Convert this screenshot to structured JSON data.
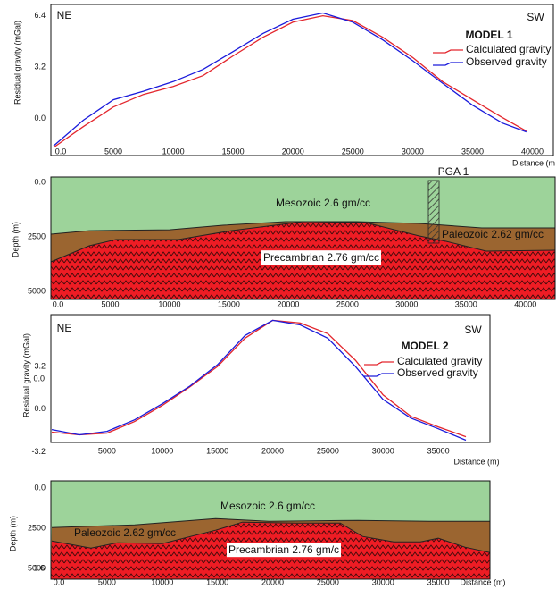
{
  "chart_data": [
    {
      "type": "line",
      "title": "MODEL 1",
      "annotations": [
        "NE",
        "SW"
      ],
      "ylabel": "Residual gravity (mGal)",
      "xlabel": "Distance (m",
      "x": [
        0,
        2500,
        5000,
        7500,
        10000,
        12500,
        15000,
        17500,
        20000,
        22500,
        25000,
        27500,
        30000,
        32500,
        35000,
        37500,
        39500
      ],
      "series": [
        {
          "name": "Calculated gravity",
          "color": "#e3262d",
          "values": [
            -1.8,
            -0.5,
            0.72,
            1.5,
            2.0,
            2.67,
            3.9,
            5.06,
            6.0,
            6.4,
            6.1,
            5.06,
            3.8,
            2.3,
            1.17,
            0.06,
            -0.78
          ]
        },
        {
          "name": "Observed gravity",
          "color": "#1a1adb",
          "values": [
            -1.7,
            -0.1,
            1.17,
            1.7,
            2.3,
            3.06,
            4.17,
            5.3,
            6.18,
            6.57,
            6.0,
            4.9,
            3.6,
            2.2,
            0.83,
            -0.28,
            -0.83
          ]
        }
      ],
      "xlim": [
        -220,
        41750
      ],
      "ylim": [
        -2.3,
        7.1
      ],
      "xticks": [
        {
          "value": 0,
          "label": "0.0"
        },
        5000,
        10000,
        15000,
        20000,
        25000,
        30000,
        35000,
        40000
      ],
      "yticks": [
        6.4,
        3.2,
        {
          "value": 0,
          "label": "0.0"
        }
      ]
    },
    {
      "type": "section",
      "ylabel": "Depth (m)",
      "well": "PGA 1",
      "series": [
        {
          "name": "Mesozoic 2.6 gm/cc",
          "color": "#9dd39a"
        },
        {
          "name": "Paleozoic 2.62 gm/cc",
          "color": "#9b6530",
          "x": [
            0,
            3233,
            10000,
            14511,
            19774,
            25789,
            31053,
            36316,
            42500
          ],
          "values": [
            2377,
            2214,
            2173,
            1967,
            1803,
            1803,
            1885,
            2090,
            2090
          ]
        },
        {
          "name": "Precambrian 2.76 gm/cc",
          "color": "#ee1c24",
          "x": [
            0,
            3233,
            5489,
            10752,
            15263,
            21278,
            26541,
            31053,
            33308,
            36692,
            42500
          ],
          "values": [
            3648,
            2910,
            2623,
            2623,
            2213,
            1803,
            1844,
            2459,
            2705,
            3156,
            3115
          ]
        }
      ],
      "xlim": [
        0,
        42500
      ],
      "ylim": [
        -250,
        5370
      ],
      "xticks": [
        {
          "value": 0,
          "label": "0.0"
        },
        5000,
        10000,
        15000,
        20000,
        25000,
        30000,
        35000,
        40000
      ],
      "yticks": [
        {
          "value": 0,
          "label": "0.0"
        },
        2500,
        5000
      ]
    },
    {
      "type": "line",
      "title": "MODEL 2",
      "annotations": [
        "NE",
        "SW"
      ],
      "ylabel": "Residual gravity (mGal)",
      "xlabel": "Distance (m)",
      "extra_labels": [
        "0.0"
      ],
      "x": [
        0,
        2500,
        5000,
        7500,
        10000,
        12500,
        15000,
        17500,
        20000,
        22500,
        25000,
        27500,
        30000,
        32500,
        35000,
        37500
      ],
      "series": [
        {
          "name": "Calculated gravity",
          "color": "#e3262d",
          "values": [
            -1.73,
            -1.93,
            -1.8,
            -0.93,
            0.27,
            1.67,
            3.2,
            5.33,
            6.67,
            6.47,
            5.67,
            3.67,
            1.07,
            -0.53,
            -1.33,
            -2.07
          ]
        },
        {
          "name": "Observed gravity",
          "color": "#1a1adb",
          "values": [
            -1.53,
            -1.93,
            -1.67,
            -0.8,
            0.4,
            1.73,
            3.33,
            5.53,
            6.67,
            6.33,
            5.33,
            3.2,
            0.73,
            -0.67,
            -1.47,
            -2.33
          ]
        }
      ],
      "xlim": [
        -80,
        39680
      ],
      "ylim": [
        -2.5,
        7.1
      ],
      "xticks": [
        5000,
        10000,
        15000,
        20000,
        25000,
        30000,
        35000
      ],
      "yticks": [
        3.2,
        {
          "value": 0,
          "label": "0.0"
        },
        -3.2
      ]
    },
    {
      "type": "section",
      "ylabel": "Depth (m)",
      "xlabel": "Distance (m)",
      "extra_labels": [
        "-1.6"
      ],
      "series": [
        {
          "name": "Mesozoic 2.6 gm/cc",
          "color": "#9dd39a"
        },
        {
          "name": "Paleozoic 2.62 gm/cc",
          "color": "#9b6530",
          "x": [
            0,
            7500,
            14839,
            19677,
            27742,
            34194,
            39680
          ],
          "values": [
            2444,
            2278,
            1889,
            2056,
            2000,
            2056,
            2056
          ]
        },
        {
          "name": "Precambrian 2.76 gm/c",
          "color": "#ee1c24",
          "x": [
            0,
            3548,
            5968,
            10000,
            14839,
            17258,
            22097,
            26129,
            28145,
            30968,
            33387,
            35000,
            37419,
            39680
          ],
          "values": [
            3278,
            3722,
            3389,
            3444,
            2611,
            2111,
            2167,
            2167,
            3000,
            3333,
            3333,
            3111,
            3667,
            4000
          ]
        }
      ],
      "xlim": [
        -80,
        39680
      ],
      "ylim": [
        -450,
        5650
      ],
      "xticks": [
        {
          "value": 0,
          "label": "0.0"
        },
        5000,
        10000,
        15000,
        20000,
        25000,
        30000,
        35000
      ],
      "yticks": [
        {
          "value": 0,
          "label": "0.0"
        },
        2500,
        5000
      ]
    }
  ]
}
